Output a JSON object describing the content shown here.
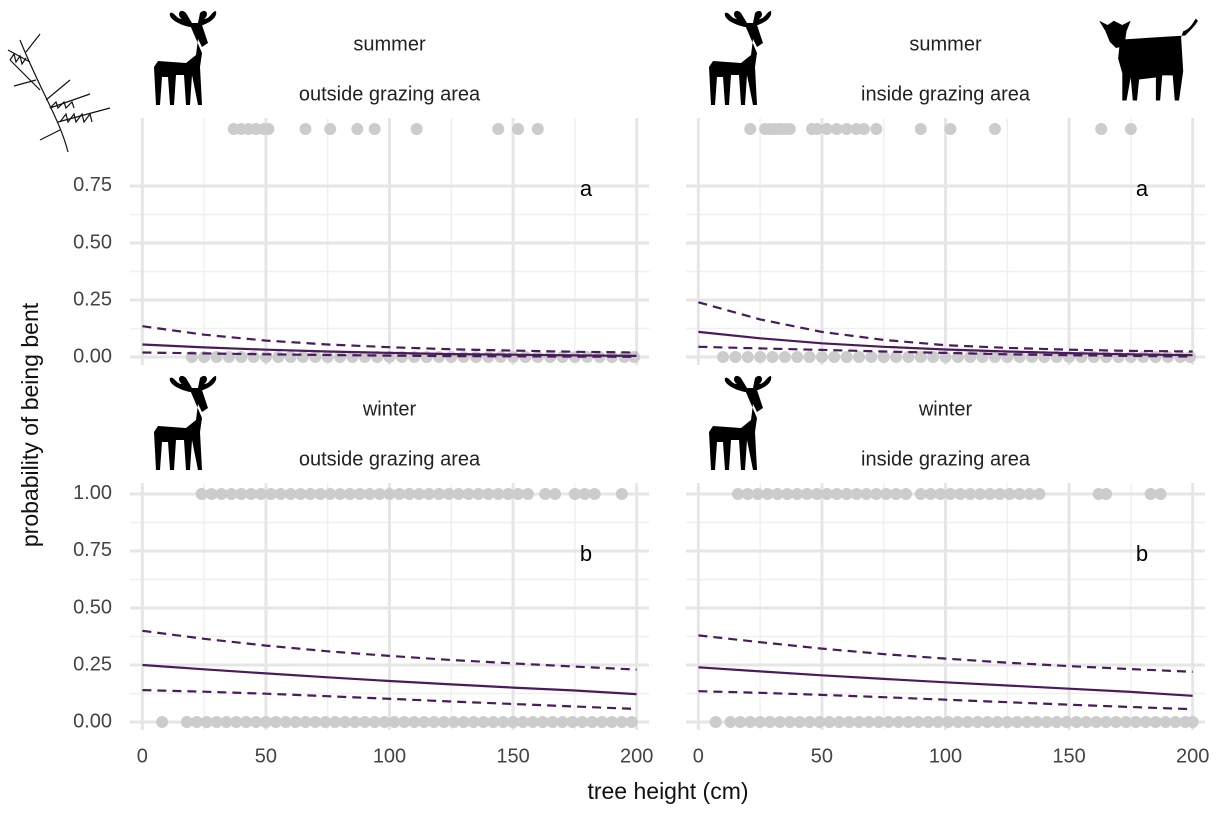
{
  "chart_data": {
    "type": "line",
    "xlabel": "tree height (cm)",
    "ylabel": "probability of being bent",
    "xlim": [
      -5,
      205
    ],
    "xticks": [
      0,
      50,
      100,
      150,
      200
    ],
    "grid": true,
    "x": [
      0,
      25,
      50,
      75,
      100,
      125,
      150,
      175,
      200
    ],
    "rows": [
      {
        "ylim": [
          -0.035,
          1.048
        ],
        "yticks": [
          {
            "value": 0,
            "label": "0.00"
          },
          {
            "value": 0.25,
            "label": "0.25"
          },
          {
            "value": 0.5,
            "label": "0.50"
          },
          {
            "value": 0.75,
            "label": "0.75"
          }
        ],
        "panels": [
          {
            "title": "summer",
            "subtitle": "outside grazing area",
            "annotation": "a",
            "series": [
              {
                "color": "#4a1a5c",
                "dash": "solid",
                "values": [
                  0.055,
                  0.042,
                  0.032,
                  0.024,
                  0.018,
                  0.013,
                  0.01,
                  0.007,
                  0.005
                ]
              },
              {
                "color": "#4a1a5c",
                "dash": "dashed",
                "values": [
                  0.135,
                  0.098,
                  0.072,
                  0.055,
                  0.043,
                  0.034,
                  0.028,
                  0.023,
                  0.02
                ]
              },
              {
                "color": "#4a1a5c",
                "dash": "dashed",
                "values": [
                  0.02,
                  0.016,
                  0.012,
                  0.009,
                  0.006,
                  0.004,
                  0.003,
                  0.002,
                  0.001
                ]
              }
            ],
            "points": {
              "color": "#cccccc",
              "x": [
                37,
                40,
                43,
                46,
                49,
                51,
                66,
                76,
                87,
                94,
                111,
                144,
                152,
                160,
                20,
                25,
                30,
                35,
                40,
                45,
                50,
                55,
                60,
                65,
                70,
                75,
                80,
                85,
                90,
                95,
                100,
                105,
                110,
                115,
                120,
                125,
                130,
                135,
                140,
                145,
                150,
                155,
                160,
                165,
                170,
                175,
                180,
                185,
                190,
                195,
                199
              ],
              "y": [
                1,
                1,
                1,
                1,
                1,
                1,
                1,
                1,
                1,
                1,
                1,
                1,
                1,
                1,
                0,
                0,
                0,
                0,
                0,
                0,
                0,
                0,
                0,
                0,
                0,
                0,
                0,
                0,
                0,
                0,
                0,
                0,
                0,
                0,
                0,
                0,
                0,
                0,
                0,
                0,
                0,
                0,
                0,
                0,
                0,
                0,
                0,
                0,
                0,
                0,
                0
              ]
            }
          },
          {
            "title": "summer",
            "subtitle": "inside grazing area",
            "annotation": "a",
            "series": [
              {
                "color": "#4a1a5c",
                "dash": "solid",
                "values": [
                  0.11,
                  0.082,
                  0.06,
                  0.045,
                  0.033,
                  0.024,
                  0.017,
                  0.012,
                  0.008
                ]
              },
              {
                "color": "#4a1a5c",
                "dash": "dashed",
                "values": [
                  0.24,
                  0.165,
                  0.11,
                  0.075,
                  0.052,
                  0.04,
                  0.032,
                  0.027,
                  0.024
                ]
              },
              {
                "color": "#4a1a5c",
                "dash": "dashed",
                "values": [
                  0.045,
                  0.038,
                  0.031,
                  0.024,
                  0.018,
                  0.012,
                  0.008,
                  0.005,
                  0.002
                ]
              }
            ],
            "points": {
              "color": "#cccccc",
              "x": [
                21,
                27,
                29,
                31,
                33,
                35,
                37,
                46,
                48,
                52,
                56,
                60,
                64,
                67,
                72,
                90,
                102,
                120,
                163,
                175,
                10,
                15,
                20,
                25,
                30,
                35,
                40,
                45,
                50,
                55,
                60,
                65,
                70,
                75,
                80,
                85,
                90,
                95,
                100,
                105,
                110,
                115,
                120,
                125,
                130,
                135,
                140,
                145,
                150,
                155,
                160,
                165,
                170,
                175,
                180,
                185,
                190,
                195,
                199
              ],
              "y": [
                1,
                1,
                1,
                1,
                1,
                1,
                1,
                1,
                1,
                1,
                1,
                1,
                1,
                1,
                1,
                1,
                1,
                1,
                1,
                1,
                0,
                0,
                0,
                0,
                0,
                0,
                0,
                0,
                0,
                0,
                0,
                0,
                0,
                0,
                0,
                0,
                0,
                0,
                0,
                0,
                0,
                0,
                0,
                0,
                0,
                0,
                0,
                0,
                0,
                0,
                0,
                0,
                0,
                0,
                0,
                0,
                0,
                0,
                0
              ]
            }
          }
        ]
      },
      {
        "ylim": [
          -0.035,
          1.048
        ],
        "yticks": [
          {
            "value": 0,
            "label": "0.00"
          },
          {
            "value": 0.25,
            "label": "0.25"
          },
          {
            "value": 0.5,
            "label": "0.50"
          },
          {
            "value": 0.75,
            "label": "0.75"
          },
          {
            "value": 1,
            "label": "1.00"
          }
        ],
        "panels": [
          {
            "title": "winter",
            "subtitle": "outside grazing area",
            "annotation": "b",
            "series": [
              {
                "color": "#4a1a5c",
                "dash": "solid",
                "values": [
                  0.25,
                  0.231,
                  0.213,
                  0.196,
                  0.18,
                  0.165,
                  0.151,
                  0.138,
                  0.122
                ]
              },
              {
                "color": "#4a1a5c",
                "dash": "dashed",
                "values": [
                  0.4,
                  0.365,
                  0.335,
                  0.31,
                  0.29,
                  0.272,
                  0.257,
                  0.243,
                  0.23
                ]
              },
              {
                "color": "#4a1a5c",
                "dash": "dashed",
                "values": [
                  0.14,
                  0.133,
                  0.124,
                  0.113,
                  0.102,
                  0.09,
                  0.079,
                  0.068,
                  0.057
                ]
              }
            ],
            "points": {
              "color": "#cccccc",
              "x": [
                24,
                28,
                32,
                36,
                40,
                44,
                48,
                52,
                56,
                60,
                64,
                68,
                72,
                76,
                80,
                84,
                88,
                92,
                96,
                100,
                104,
                108,
                112,
                116,
                120,
                124,
                128,
                132,
                136,
                140,
                144,
                148,
                152,
                156,
                163,
                167,
                175,
                179,
                183,
                194,
                8,
                18,
                22,
                26,
                30,
                34,
                38,
                42,
                46,
                50,
                54,
                58,
                62,
                66,
                70,
                74,
                78,
                82,
                86,
                90,
                94,
                98,
                102,
                106,
                110,
                114,
                118,
                122,
                126,
                130,
                134,
                138,
                142,
                146,
                150,
                154,
                158,
                162,
                166,
                170,
                174,
                178,
                182,
                186,
                190,
                194,
                198
              ],
              "y": [
                1,
                1,
                1,
                1,
                1,
                1,
                1,
                1,
                1,
                1,
                1,
                1,
                1,
                1,
                1,
                1,
                1,
                1,
                1,
                1,
                1,
                1,
                1,
                1,
                1,
                1,
                1,
                1,
                1,
                1,
                1,
                1,
                1,
                1,
                1,
                1,
                1,
                1,
                1,
                1,
                0,
                0,
                0,
                0,
                0,
                0,
                0,
                0,
                0,
                0,
                0,
                0,
                0,
                0,
                0,
                0,
                0,
                0,
                0,
                0,
                0,
                0,
                0,
                0,
                0,
                0,
                0,
                0,
                0,
                0,
                0,
                0,
                0,
                0,
                0,
                0,
                0,
                0,
                0,
                0,
                0,
                0,
                0,
                0,
                0,
                0,
                0
              ]
            }
          },
          {
            "title": "winter",
            "subtitle": "inside grazing area",
            "annotation": "b",
            "series": [
              {
                "color": "#4a1a5c",
                "dash": "solid",
                "values": [
                  0.24,
                  0.222,
                  0.205,
                  0.189,
                  0.174,
                  0.16,
                  0.146,
                  0.132,
                  0.115
                ]
              },
              {
                "color": "#4a1a5c",
                "dash": "dashed",
                "values": [
                  0.38,
                  0.35,
                  0.322,
                  0.298,
                  0.278,
                  0.26,
                  0.245,
                  0.232,
                  0.22
                ]
              },
              {
                "color": "#4a1a5c",
                "dash": "dashed",
                "values": [
                  0.135,
                  0.128,
                  0.119,
                  0.109,
                  0.098,
                  0.087,
                  0.076,
                  0.066,
                  0.056
                ]
              }
            ],
            "points": {
              "color": "#cccccc",
              "x": [
                16,
                20,
                24,
                28,
                32,
                36,
                40,
                44,
                48,
                52,
                56,
                60,
                64,
                68,
                72,
                76,
                80,
                84,
                90,
                94,
                98,
                102,
                106,
                110,
                114,
                118,
                122,
                126,
                130,
                134,
                138,
                162,
                165,
                183,
                187,
                7,
                13,
                17,
                21,
                25,
                29,
                33,
                37,
                41,
                45,
                49,
                53,
                57,
                61,
                65,
                69,
                73,
                77,
                81,
                85,
                89,
                93,
                97,
                101,
                105,
                109,
                113,
                117,
                121,
                125,
                129,
                133,
                137,
                141,
                145,
                149,
                153,
                157,
                161,
                165,
                169,
                173,
                177,
                181,
                185,
                189,
                193,
                197,
                200
              ],
              "y": [
                1,
                1,
                1,
                1,
                1,
                1,
                1,
                1,
                1,
                1,
                1,
                1,
                1,
                1,
                1,
                1,
                1,
                1,
                1,
                1,
                1,
                1,
                1,
                1,
                1,
                1,
                1,
                1,
                1,
                1,
                1,
                1,
                1,
                1,
                1,
                0,
                0,
                0,
                0,
                0,
                0,
                0,
                0,
                0,
                0,
                0,
                0,
                0,
                0,
                0,
                0,
                0,
                0,
                0,
                0,
                0,
                0,
                0,
                0,
                0,
                0,
                0,
                0,
                0,
                0,
                0,
                0,
                0,
                0,
                0,
                0,
                0,
                0,
                0,
                0,
                0,
                0,
                0,
                0,
                0,
                0,
                0,
                0,
                0
              ]
            }
          }
        ]
      }
    ]
  }
}
